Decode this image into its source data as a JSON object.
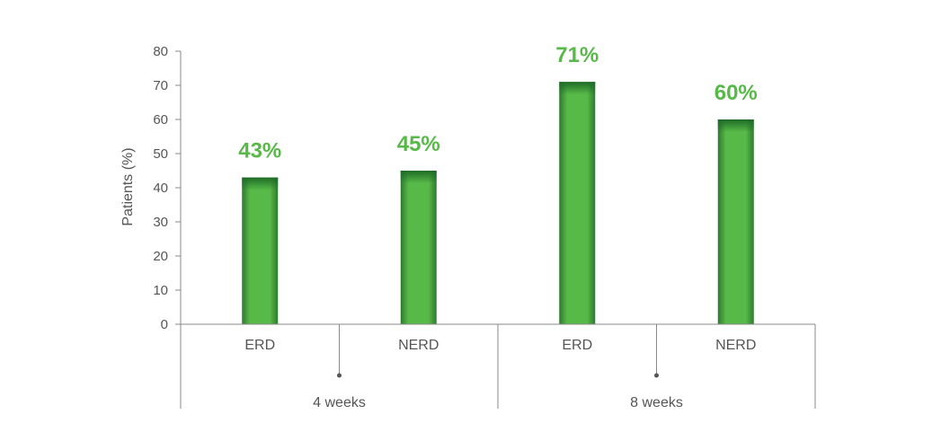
{
  "chart_data": {
    "type": "bar",
    "title": "",
    "ylabel": "Patients (%)",
    "ylim": [
      0,
      80
    ],
    "yticks": [
      "0",
      "10",
      "20",
      "30",
      "40",
      "50",
      "60",
      "70",
      "80"
    ],
    "categories": [
      "ERD",
      "NERD",
      "ERD",
      "NERD"
    ],
    "groups": [
      {
        "label": "4 weeks",
        "categories": [
          "ERD",
          "NERD"
        ]
      },
      {
        "label": "8 weeks",
        "categories": [
          "ERD",
          "NERD"
        ]
      }
    ],
    "values": [
      43,
      45,
      71,
      60
    ],
    "data_labels": [
      "43%",
      "45%",
      "71%",
      "60%"
    ],
    "grid": false,
    "bar_color": "#57b947",
    "bar_top_color": "#1e6b27",
    "label_color": "#57b947",
    "axis_color": "#8a8a8a",
    "text_color": "#555555"
  }
}
